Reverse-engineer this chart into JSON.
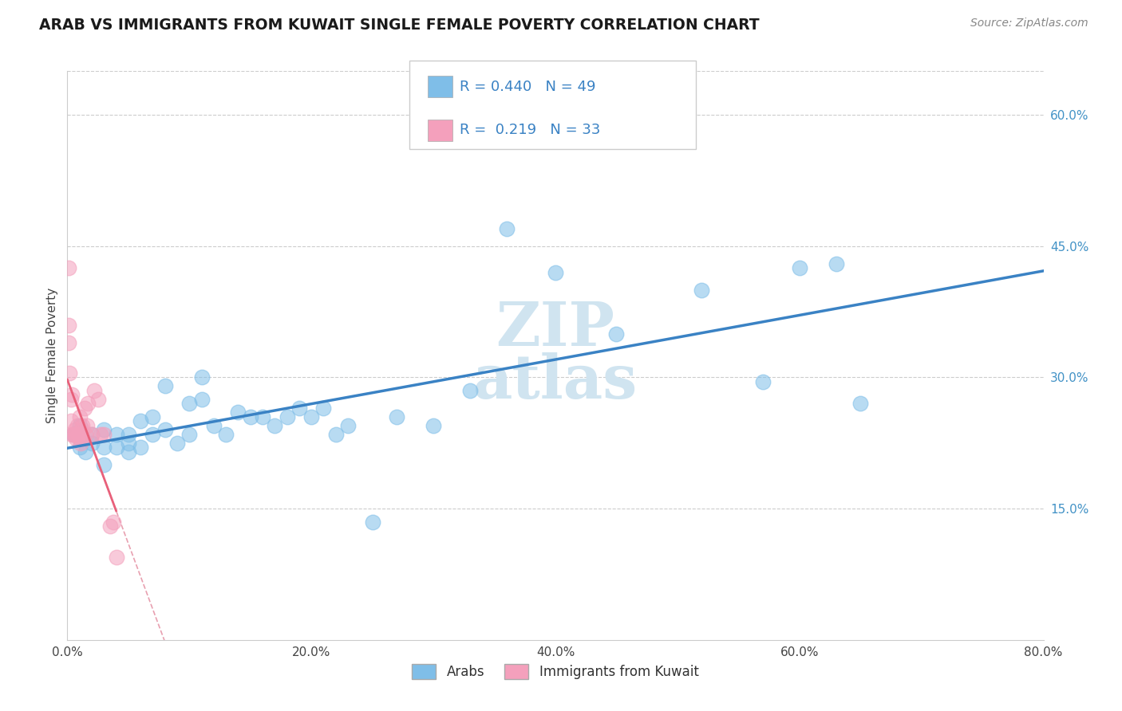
{
  "title": "ARAB VS IMMIGRANTS FROM KUWAIT SINGLE FEMALE POVERTY CORRELATION CHART",
  "source": "Source: ZipAtlas.com",
  "ylabel": "Single Female Poverty",
  "legend_labels": [
    "Arabs",
    "Immigrants from Kuwait"
  ],
  "r_values": [
    0.44,
    0.219
  ],
  "n_values": [
    49,
    33
  ],
  "xlim": [
    0.0,
    0.8
  ],
  "ylim": [
    0.0,
    0.65
  ],
  "xticklabels": [
    "0.0%",
    "20.0%",
    "40.0%",
    "60.0%",
    "80.0%"
  ],
  "xticks": [
    0.0,
    0.2,
    0.4,
    0.6,
    0.8
  ],
  "yticks_right": [
    0.15,
    0.3,
    0.45,
    0.6
  ],
  "ytick_right_labels": [
    "15.0%",
    "30.0%",
    "45.0%",
    "60.0%"
  ],
  "color_arab": "#7fbee8",
  "color_kuwait": "#f4a0bc",
  "color_arab_line": "#3a82c4",
  "color_kuwait_line": "#e8607a",
  "color_dashed": "#e8a0b0",
  "watermark_color": "#d0e4f0",
  "arab_x": [
    0.005,
    0.01,
    0.01,
    0.015,
    0.02,
    0.02,
    0.03,
    0.03,
    0.03,
    0.04,
    0.04,
    0.05,
    0.05,
    0.05,
    0.06,
    0.06,
    0.07,
    0.07,
    0.08,
    0.08,
    0.09,
    0.1,
    0.1,
    0.11,
    0.11,
    0.12,
    0.13,
    0.14,
    0.15,
    0.16,
    0.17,
    0.18,
    0.19,
    0.2,
    0.21,
    0.22,
    0.23,
    0.25,
    0.27,
    0.3,
    0.33,
    0.36,
    0.4,
    0.45,
    0.52,
    0.57,
    0.6,
    0.63,
    0.65
  ],
  "arab_y": [
    0.235,
    0.22,
    0.245,
    0.215,
    0.225,
    0.235,
    0.22,
    0.24,
    0.2,
    0.22,
    0.235,
    0.215,
    0.225,
    0.235,
    0.22,
    0.25,
    0.235,
    0.255,
    0.24,
    0.29,
    0.225,
    0.235,
    0.27,
    0.275,
    0.3,
    0.245,
    0.235,
    0.26,
    0.255,
    0.255,
    0.245,
    0.255,
    0.265,
    0.255,
    0.265,
    0.235,
    0.245,
    0.135,
    0.255,
    0.245,
    0.285,
    0.47,
    0.42,
    0.35,
    0.4,
    0.295,
    0.425,
    0.43,
    0.27
  ],
  "kuwait_x": [
    0.001,
    0.001,
    0.001,
    0.002,
    0.003,
    0.003,
    0.004,
    0.004,
    0.005,
    0.006,
    0.006,
    0.007,
    0.007,
    0.008,
    0.009,
    0.01,
    0.01,
    0.011,
    0.012,
    0.012,
    0.013,
    0.014,
    0.015,
    0.016,
    0.017,
    0.02,
    0.022,
    0.025,
    0.027,
    0.03,
    0.035,
    0.038,
    0.04
  ],
  "kuwait_y": [
    0.425,
    0.36,
    0.34,
    0.305,
    0.275,
    0.25,
    0.235,
    0.28,
    0.235,
    0.235,
    0.24,
    0.23,
    0.235,
    0.245,
    0.235,
    0.255,
    0.23,
    0.225,
    0.24,
    0.245,
    0.23,
    0.265,
    0.235,
    0.245,
    0.27,
    0.235,
    0.285,
    0.275,
    0.235,
    0.235,
    0.13,
    0.135,
    0.095
  ]
}
